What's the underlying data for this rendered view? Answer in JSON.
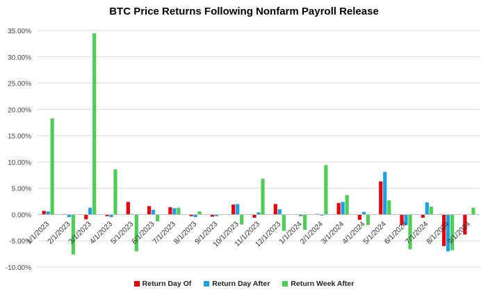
{
  "chart_data": {
    "type": "bar",
    "title": "BTC Price Returns Following Nonfarm Payroll Release",
    "xlabel": "",
    "ylabel": "",
    "ylim": [
      -10,
      35
    ],
    "yticks": [
      -10,
      -5,
      0,
      5,
      10,
      15,
      20,
      25,
      30,
      35
    ],
    "ytick_labels": [
      "-10.00%",
      "-5.00%",
      "0.00%",
      "5.00%",
      "10.00%",
      "15.00%",
      "20.00%",
      "25.00%",
      "30.00%",
      "35.00%"
    ],
    "categories": [
      "1/1/2023",
      "2/1/2023",
      "3/1/2023",
      "4/1/2023",
      "5/1/2023",
      "6/1/2023",
      "7/1/2023",
      "8/1/2023",
      "9/1/2023",
      "10/1/2023",
      "11/1/2023",
      "12/1/2023",
      "1/1/2024",
      "2/1/2024",
      "3/1/2024",
      "4/1/2024",
      "5/1/2024",
      "6/1/2024",
      "7/1/2024",
      "8/1/2024",
      "9/1/2024"
    ],
    "series": [
      {
        "name": "Return Day Of",
        "color": "#e8000b",
        "values": [
          0.7,
          0.1,
          -0.9,
          -0.3,
          2.4,
          1.6,
          1.4,
          -0.3,
          -0.4,
          1.9,
          -0.6,
          2.0,
          0.0,
          0.1,
          2.2,
          -1.0,
          6.3,
          -2.0,
          -0.6,
          -6.0,
          -3.8
        ]
      },
      {
        "name": "Return Day After",
        "color": "#1ba1e2",
        "values": [
          0.6,
          -0.5,
          1.3,
          -0.5,
          0.1,
          0.9,
          1.2,
          -0.5,
          -0.3,
          2.0,
          0.4,
          1.0,
          -0.3,
          -0.2,
          2.4,
          0.5,
          8.1,
          -2.0,
          2.3,
          -7.0,
          0.0
        ]
      },
      {
        "name": "Return Week After",
        "color": "#4fce56",
        "values": [
          18.3,
          -7.6,
          34.5,
          8.6,
          -7.0,
          -1.3,
          1.3,
          0.6,
          -0.1,
          -1.9,
          6.8,
          -3.1,
          -2.9,
          9.4,
          3.7,
          -2.0,
          2.7,
          -6.6,
          1.5,
          -6.8,
          1.3
        ]
      }
    ],
    "legend_position": "bottom",
    "grid": true
  }
}
